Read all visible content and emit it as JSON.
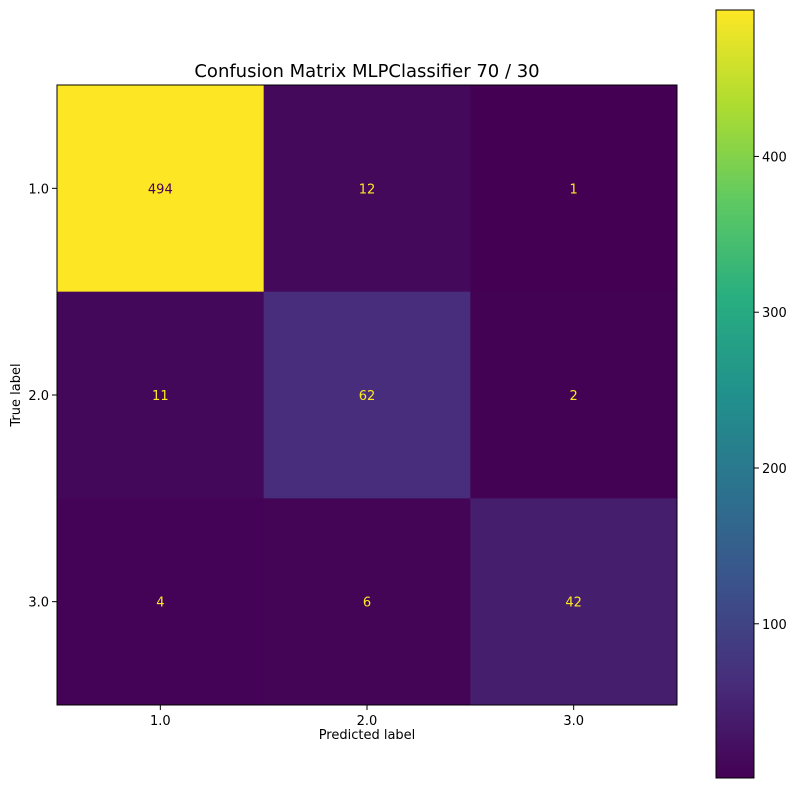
{
  "chart_data": {
    "type": "heatmap",
    "title": "Confusion Matrix MLPClassifier 70 / 30",
    "xlabel": "Predicted label",
    "ylabel": "True label",
    "x_categories": [
      "1.0",
      "2.0",
      "3.0"
    ],
    "y_categories": [
      "1.0",
      "2.0",
      "3.0"
    ],
    "matrix": [
      [
        494,
        12,
        1
      ],
      [
        11,
        62,
        2
      ],
      [
        4,
        6,
        42
      ]
    ],
    "colormap": "viridis",
    "color_range": [
      1,
      494
    ],
    "colorbar_ticks": [
      "100",
      "200",
      "300",
      "400"
    ],
    "colorbar_tick_values": [
      100,
      200,
      300,
      400
    ],
    "text_color_on_dark": "#fde725",
    "text_color_on_light": "#440154"
  }
}
